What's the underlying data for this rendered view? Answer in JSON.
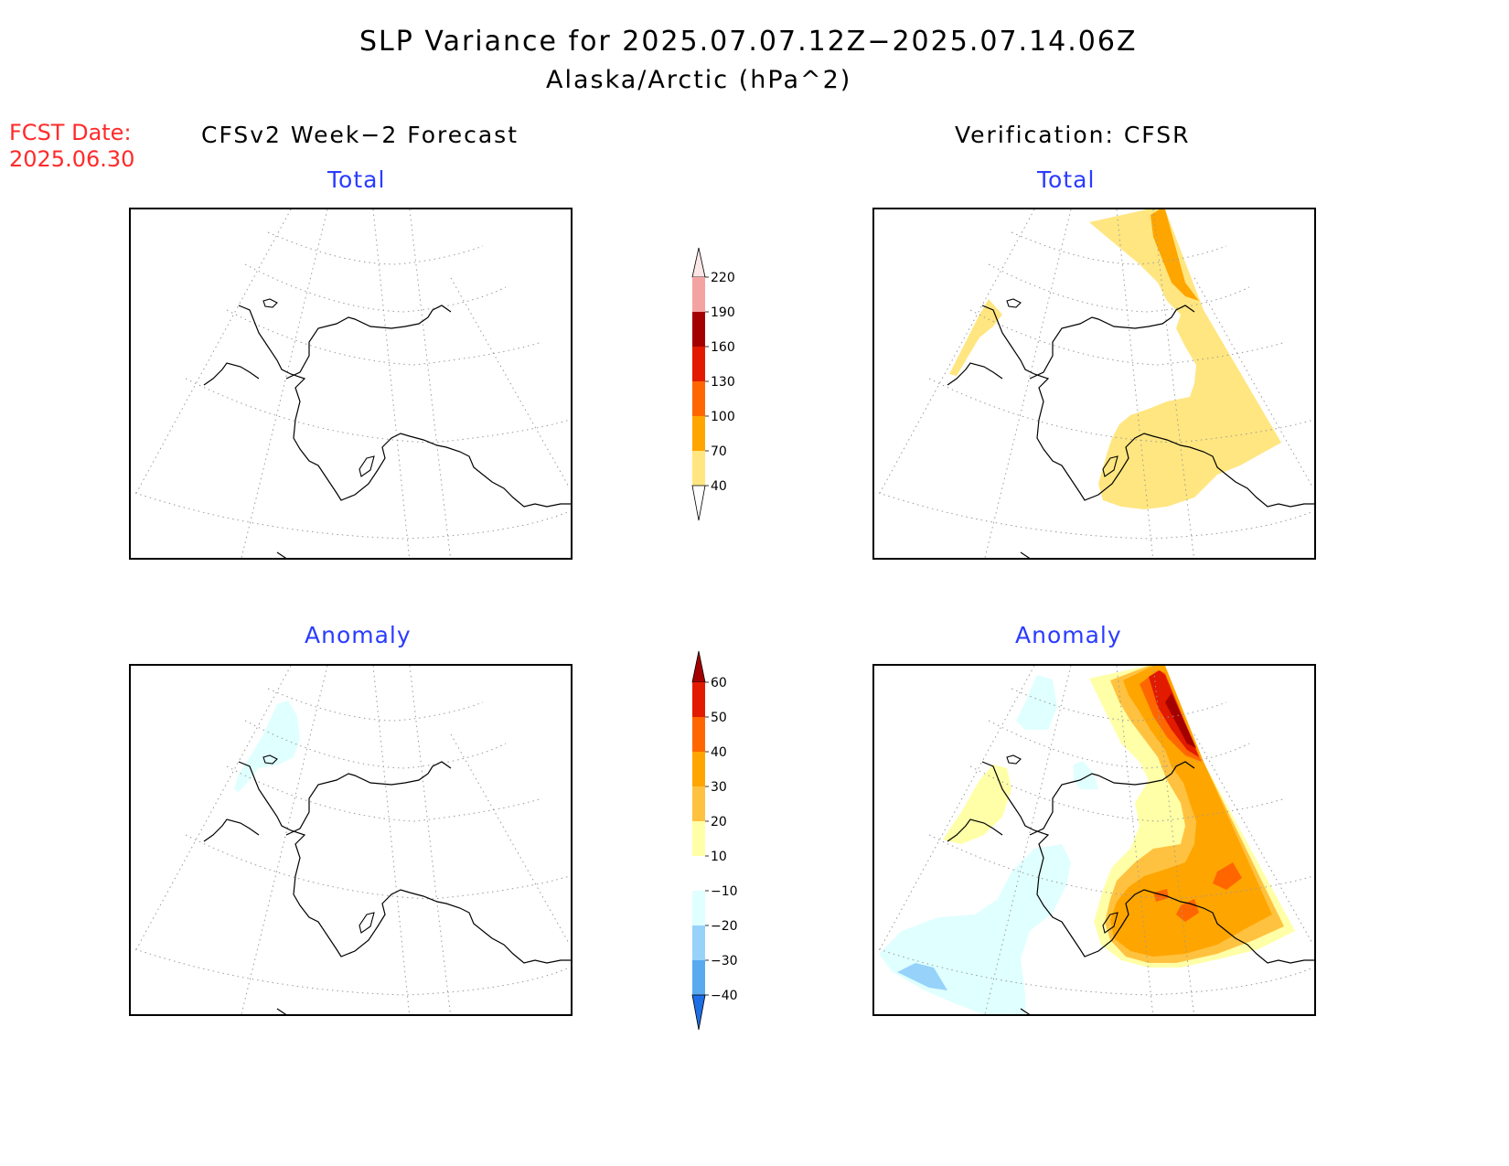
{
  "header": {
    "title": "SLP Variance for 2025.07.07.12Z−2025.07.14.06Z",
    "subtitle": "Alaska/Arctic (hPa^2)"
  },
  "fcst_date": {
    "label": "FCST Date:",
    "value": "2025.06.30"
  },
  "columns": {
    "left": "CFSv2 Week−2 Forecast",
    "right": "Verification: CFSR"
  },
  "panels": {
    "fcst_total": {
      "title": "Total"
    },
    "verif_total": {
      "title": "Total"
    },
    "fcst_anom": {
      "title": "Anomaly"
    },
    "verif_anom": {
      "title": "Anomaly"
    }
  },
  "colorbars": {
    "total": {
      "levels": [
        "40",
        "70",
        "100",
        "130",
        "160",
        "190",
        "220"
      ],
      "colors": [
        "#ffe680",
        "#ffa500",
        "#ff6600",
        "#e11a00",
        "#a50000",
        "#f4a3a3",
        "#fde6e6"
      ]
    },
    "anomaly": {
      "levels": [
        "60",
        "50",
        "40",
        "30",
        "20",
        "10",
        "−10",
        "−20",
        "−30",
        "−40"
      ],
      "colors": [
        "#a50000",
        "#e11a00",
        "#ff6600",
        "#ffa500",
        "#ffc240",
        "#ffffa8",
        "#ffffff",
        "#e0ffff",
        "#96d2fa",
        "#5aaaf0",
        "#1e6ee6"
      ]
    },
    "colors": {
      "light_yellow": "#ffe680",
      "orange": "#ffa500",
      "light_cyan": "#e0ffff"
    }
  }
}
